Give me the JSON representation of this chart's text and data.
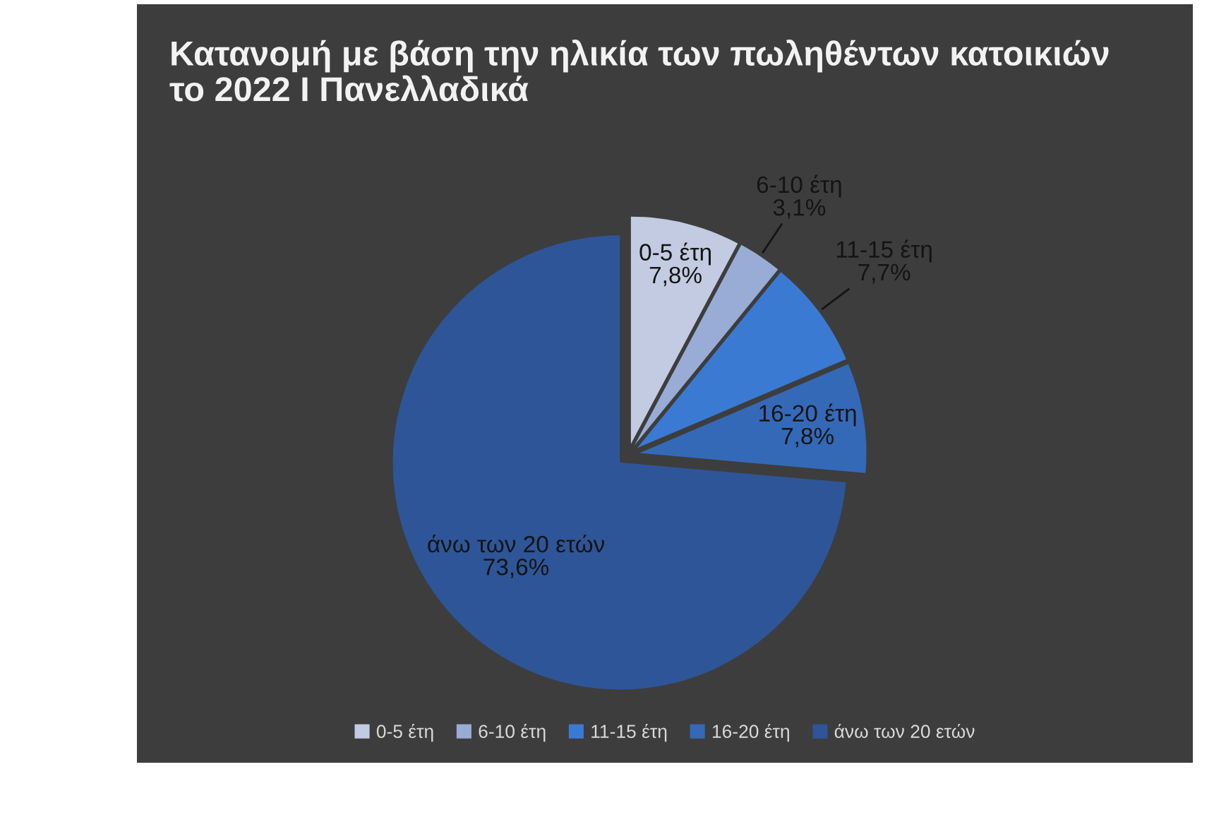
{
  "chart_data": {
    "type": "pie",
    "title": "Κατανομή με βάση την ηλικία των πωληθέντων κατοικιών\nτο 2022 I Πανελλαδικά",
    "categories": [
      "0-5 έτη",
      "6-10 έτη",
      "11-15 έτη",
      "16-20 έτη",
      "άνω των 20 ετών"
    ],
    "values": [
      7.8,
      3.1,
      7.7,
      7.8,
      73.6
    ],
    "value_labels": [
      "7,8%",
      "3,1%",
      "7,7%",
      "7,8%",
      "73,6%"
    ],
    "colors": [
      "#c3cbe2",
      "#98acd6",
      "#3b7ad2",
      "#3469b8",
      "#2e5597"
    ],
    "legend": "bottom"
  }
}
